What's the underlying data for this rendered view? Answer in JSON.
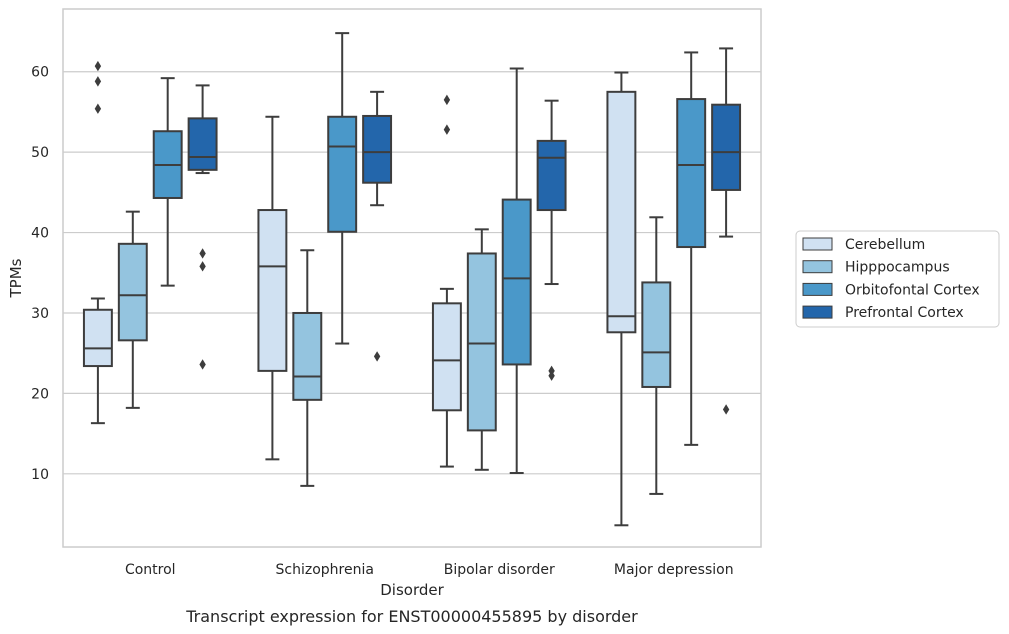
{
  "chart_data": {
    "type": "boxplot",
    "title": "",
    "caption": "Transcript expression for ENST00000455895 by disorder",
    "xlabel": "Disorder",
    "ylabel": "TPMs",
    "ylim": [
      0.9,
      67.8
    ],
    "yticks": [
      10,
      20,
      30,
      40,
      50,
      60
    ],
    "grid": "horizontal",
    "legend_position": "right",
    "categories": [
      "Control",
      "Schizophrenia",
      "Bipolar disorder",
      "Major depression"
    ],
    "series": [
      {
        "name": "Cerebellum",
        "color": "#d0e1f2",
        "boxes": [
          {
            "whislo": 16.3,
            "q1": 23.4,
            "med": 25.6,
            "q3": 30.4,
            "whishi": 31.8,
            "fliers": []
          },
          {
            "whislo": 11.8,
            "q1": 22.8,
            "med": 35.8,
            "q3": 42.8,
            "whishi": 54.4,
            "fliers": []
          },
          {
            "whislo": 10.9,
            "q1": 17.9,
            "med": 24.1,
            "q3": 31.2,
            "whishi": 33.0,
            "fliers": []
          },
          {
            "whislo": 3.6,
            "q1": 27.6,
            "med": 29.6,
            "q3": 57.5,
            "whishi": 59.9,
            "fliers": []
          }
        ]
      },
      {
        "name": "Hipppocampus",
        "color": "#94c4df",
        "boxes": [
          {
            "whislo": 18.2,
            "q1": 26.6,
            "med": 32.2,
            "q3": 38.6,
            "whishi": 42.6,
            "fliers": []
          },
          {
            "whislo": 8.5,
            "q1": 19.2,
            "med": 22.1,
            "q3": 30.0,
            "whishi": 37.8,
            "fliers": []
          },
          {
            "whislo": 10.5,
            "q1": 15.4,
            "med": 26.2,
            "q3": 37.4,
            "whishi": 40.4,
            "fliers": []
          },
          {
            "whislo": 7.5,
            "q1": 20.8,
            "med": 25.1,
            "q3": 33.8,
            "whishi": 41.9,
            "fliers": []
          }
        ]
      },
      {
        "name": "Orbitofontal Cortex",
        "color": "#4a98c9",
        "boxes": [
          {
            "whislo": 33.4,
            "q1": 44.3,
            "med": 48.4,
            "q3": 52.6,
            "whishi": 59.2,
            "fliers": []
          },
          {
            "whislo": 26.2,
            "q1": 40.1,
            "med": 50.7,
            "q3": 54.4,
            "whishi": 64.8,
            "fliers": []
          },
          {
            "whislo": 10.1,
            "q1": 23.6,
            "med": 34.3,
            "q3": 44.1,
            "whishi": 60.4,
            "fliers": []
          },
          {
            "whislo": 13.6,
            "q1": 38.2,
            "med": 48.4,
            "q3": 56.6,
            "whishi": 62.4,
            "fliers": []
          }
        ]
      },
      {
        "name": "Prefrontal Cortex",
        "color": "#2366ab",
        "boxes": [
          {
            "whislo": 47.4,
            "q1": 47.8,
            "med": 49.4,
            "q3": 54.2,
            "whishi": 58.3,
            "fliers": [
              37.4,
              35.8,
              23.6
            ]
          },
          {
            "whislo": 43.4,
            "q1": 46.2,
            "med": 50.0,
            "q3": 54.5,
            "whishi": 57.5,
            "fliers": [
              24.6
            ]
          },
          {
            "whislo": 33.6,
            "q1": 42.8,
            "med": 49.3,
            "q3": 51.4,
            "whishi": 56.4,
            "fliers": [
              22.8,
              22.2
            ]
          },
          {
            "whislo": 39.5,
            "q1": 45.3,
            "med": 50.0,
            "q3": 55.9,
            "whishi": 62.9,
            "fliers": [
              18.0
            ]
          }
        ]
      }
    ],
    "extra_fliers": [
      {
        "category": 0,
        "series": 0,
        "values": [
          60.7,
          58.8,
          55.4
        ]
      },
      {
        "category": 2,
        "series": 0,
        "values": [
          56.5,
          52.8
        ]
      }
    ]
  }
}
